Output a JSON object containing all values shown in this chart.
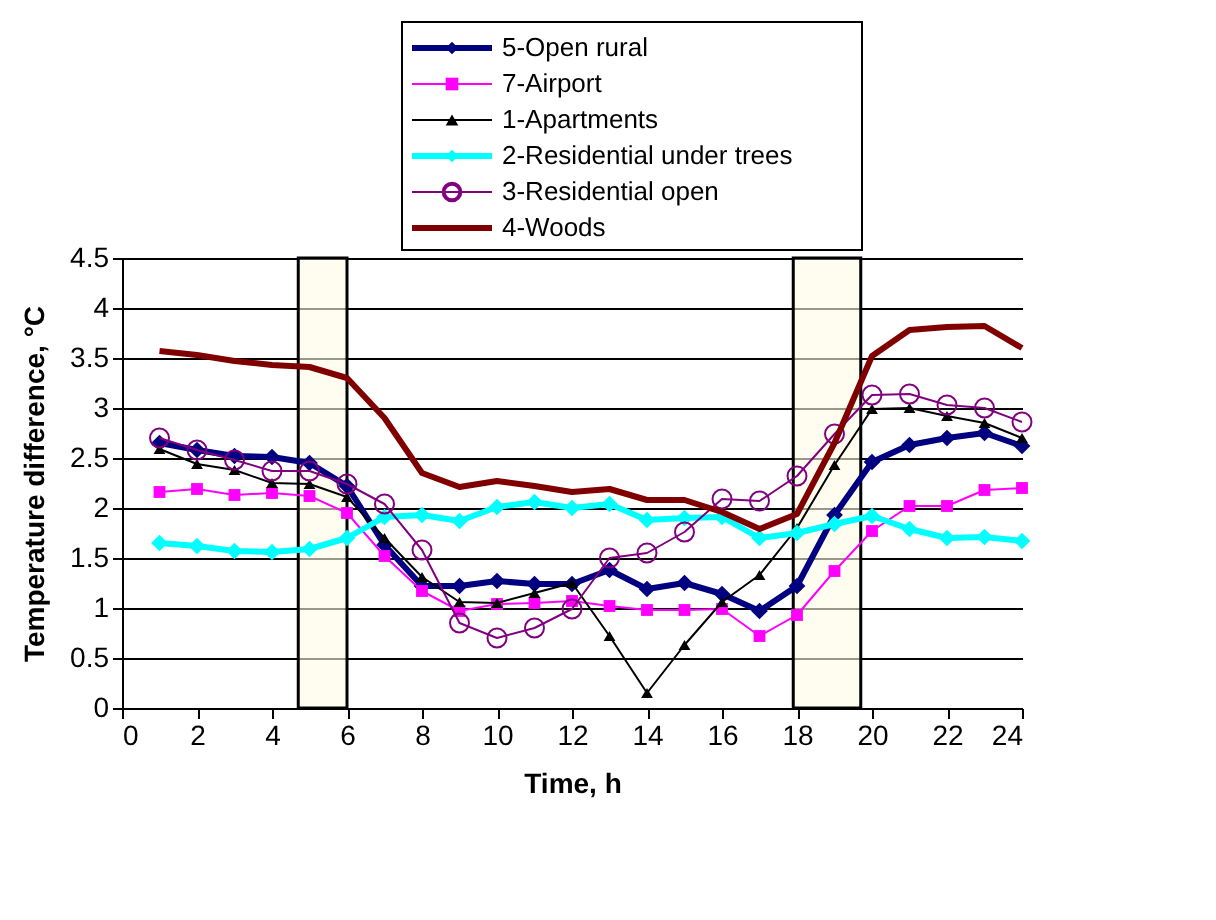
{
  "chart_data": {
    "type": "line",
    "xlabel": "Time, h",
    "ylabel": "Temperature difference, °C",
    "x": [
      1,
      2,
      3,
      4,
      5,
      6,
      7,
      8,
      9,
      10,
      11,
      12,
      13,
      14,
      15,
      16,
      17,
      18,
      19,
      20,
      21,
      22,
      23,
      24
    ],
    "series": [
      {
        "name": "5-Open rural",
        "color": "#000080",
        "marker": "diamond",
        "values": [
          2.65,
          2.58,
          2.52,
          2.51,
          2.45,
          2.22,
          1.63,
          1.22,
          1.22,
          1.27,
          1.24,
          1.24,
          1.38,
          1.19,
          1.25,
          1.14,
          0.97,
          1.22,
          1.93,
          2.46,
          2.63,
          2.7,
          2.75,
          2.62
        ]
      },
      {
        "name": "7-Airport",
        "color": "#ff00ff",
        "marker": "square",
        "values": [
          2.16,
          2.19,
          2.13,
          2.15,
          2.12,
          1.95,
          1.52,
          1.17,
          0.97,
          1.04,
          1.05,
          1.07,
          1.02,
          0.98,
          0.98,
          0.99,
          0.72,
          0.93,
          1.37,
          1.77,
          2.02,
          2.02,
          2.18,
          2.2
        ]
      },
      {
        "name": "1-Apartments",
        "color": "#000000",
        "marker": "triangle",
        "values": [
          2.59,
          2.44,
          2.38,
          2.25,
          2.24,
          2.11,
          1.7,
          1.31,
          1.06,
          1.05,
          1.15,
          1.25,
          0.72,
          0.15,
          0.63,
          1.06,
          1.33,
          1.8,
          2.43,
          2.99,
          3.0,
          2.92,
          2.85,
          2.7
        ]
      },
      {
        "name": "2-Residential under trees",
        "color": "#00ffff",
        "marker": "diamond",
        "values": [
          1.65,
          1.62,
          1.57,
          1.56,
          1.59,
          1.7,
          1.91,
          1.93,
          1.87,
          2.01,
          2.06,
          2.0,
          2.04,
          1.88,
          1.9,
          1.91,
          1.7,
          1.75,
          1.84,
          1.92,
          1.79,
          1.7,
          1.71,
          1.67
        ]
      },
      {
        "name": "3-Residential open",
        "color": "#800080",
        "marker": "circle",
        "values": [
          2.7,
          2.58,
          2.48,
          2.37,
          2.37,
          2.24,
          2.04,
          1.58,
          0.85,
          0.7,
          0.8,
          0.99,
          1.5,
          1.55,
          1.76,
          2.09,
          2.07,
          2.32,
          2.74,
          3.13,
          3.14,
          3.03,
          3.0,
          2.86
        ]
      },
      {
        "name": "4-Woods",
        "color": "#800000",
        "marker": "none",
        "values": [
          3.57,
          3.53,
          3.47,
          3.43,
          3.41,
          3.3,
          2.9,
          2.35,
          2.21,
          2.27,
          2.22,
          2.16,
          2.19,
          2.08,
          2.08,
          1.96,
          1.79,
          1.94,
          2.65,
          3.52,
          3.78,
          3.81,
          3.82,
          3.6
        ]
      }
    ],
    "xlim": [
      0,
      24
    ],
    "xticks": [
      0,
      2,
      4,
      6,
      8,
      10,
      12,
      14,
      16,
      18,
      20,
      22,
      24
    ],
    "ylim": [
      0,
      4.5
    ],
    "yticks": [
      0,
      0.5,
      1,
      1.5,
      2,
      2.5,
      3,
      3.5,
      4,
      4.5
    ],
    "grid": "y",
    "legend": "top",
    "bands": [
      {
        "axis": "x",
        "from": 4.7,
        "to": 6,
        "color": "#000000"
      },
      {
        "axis": "x",
        "from": 17.9,
        "to": 19.7,
        "color": "#000000"
      }
    ]
  }
}
